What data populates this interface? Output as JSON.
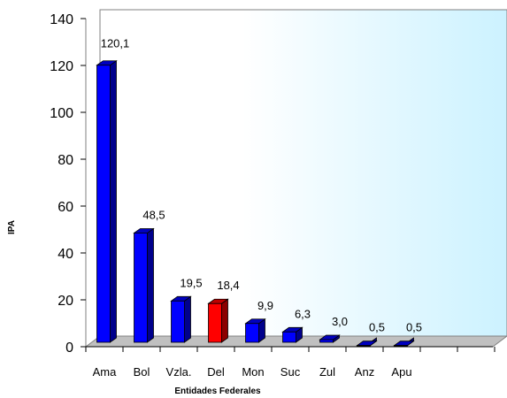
{
  "chart_data": {
    "type": "bar",
    "categories": [
      "Ama",
      "Bol",
      "Vzla.",
      "Del",
      "Mon",
      "Suc",
      "Zul",
      "Anz",
      "Apu"
    ],
    "values": [
      120.1,
      48.5,
      19.5,
      18.4,
      9.9,
      6.3,
      3.0,
      0.5,
      0.5
    ],
    "data_labels": [
      "120,1",
      "48,5",
      "19,5",
      "18,4",
      "9,9",
      "6,3",
      "3,0",
      "0,5",
      "0,5"
    ],
    "title": "",
    "xlabel": "Entidades Federales",
    "ylabel": "IPA",
    "ylim": [
      0,
      140
    ],
    "yticks": [
      0,
      20,
      40,
      60,
      80,
      100,
      120,
      140
    ],
    "grid": false,
    "legend": "none",
    "bar_color": "#0000ff",
    "highlight_color": "#ff0000",
    "highlight_category": "Del",
    "wall_gradient": [
      "#ffffff",
      "#ccf2ff"
    ],
    "floor_color": "#c0c0c0"
  }
}
